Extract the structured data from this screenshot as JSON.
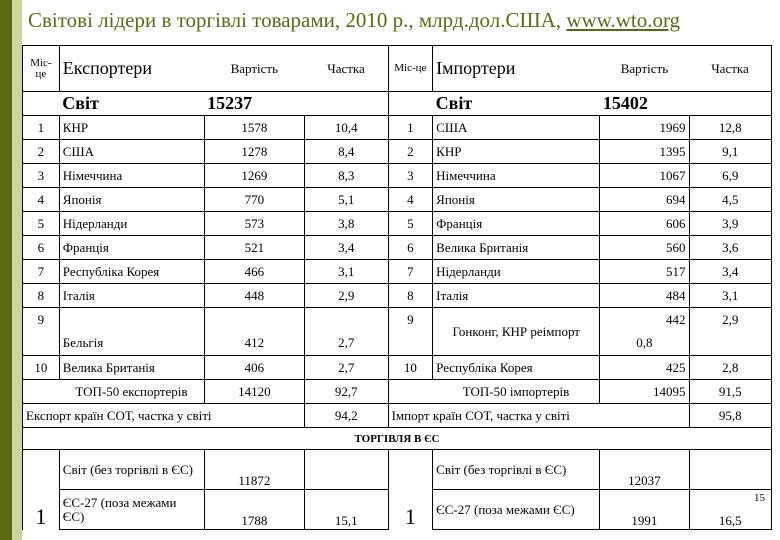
{
  "title": {
    "text": "Світові лідери в торгівлі товарами, 2010 р., млрд.дол.США, ",
    "link": "www.wto.org"
  },
  "header": {
    "place": "Міс-це",
    "exporters": "Експортери",
    "importers": "Імпортери",
    "value": "Вартість",
    "share": "Частка"
  },
  "world": {
    "label": "Світ",
    "export_value": "15237",
    "import_value": "15402"
  },
  "rows": [
    {
      "e_rank": "1",
      "e_country": "КНР",
      "e_value": "1578",
      "e_share": "10,4",
      "i_rank": "1",
      "i_country": "США",
      "i_value": "1969",
      "i_share": "12,8"
    },
    {
      "e_rank": "2",
      "e_country": "США",
      "e_value": "1278",
      "e_share": "8,4",
      "i_rank": "2",
      "i_country": "КНР",
      "i_value": "1395",
      "i_share": "9,1"
    },
    {
      "e_rank": "3",
      "e_country": "Німеччина",
      "e_value": "1269",
      "e_share": "8,3",
      "i_rank": "3",
      "i_country": "Німеччина",
      "i_value": "1067",
      "i_share": "6,9"
    },
    {
      "e_rank": "4",
      "e_country": "Японія",
      "e_value": "770",
      "e_share": "5,1",
      "i_rank": "4",
      "i_country": "Японія",
      "i_value": "694",
      "i_share": "4,5"
    },
    {
      "e_rank": "5",
      "e_country": "Нідерланди",
      "e_value": "573",
      "e_share": "3,8",
      "i_rank": "5",
      "i_country": "Франція",
      "i_value": "606",
      "i_share": "3,9"
    },
    {
      "e_rank": "6",
      "e_country": "Франція",
      "e_value": "521",
      "e_share": "3,4",
      "i_rank": "6",
      "i_country": "Велика Британія",
      "i_value": "560",
      "i_share": "3,6"
    },
    {
      "e_rank": "7",
      "e_country": "Республіка Корея",
      "e_value": "466",
      "e_share": "3,1",
      "i_rank": "7",
      "i_country": "Нідерланди",
      "i_value": "517",
      "i_share": "3,4"
    },
    {
      "e_rank": "8",
      "e_country": "Італія",
      "e_value": "448",
      "e_share": "2,9",
      "i_rank": "8",
      "i_country": "Італія",
      "i_value": "484",
      "i_share": "3,1"
    }
  ],
  "row9": {
    "e_rank": "9",
    "e_country": "Бельгія",
    "e_value": "412",
    "e_share": "2,7",
    "i_rank": "9",
    "i_country": "Гонконг, КНР реімпорт",
    "i_value_a": "442",
    "i_value_b": "0,8",
    "i_share": "2,9"
  },
  "row10": {
    "e_rank": "10",
    "e_country": "Велика Британія",
    "e_value": "406",
    "e_share": "2,7",
    "i_rank": "10",
    "i_country": "Республіка Корея",
    "i_value": "425",
    "i_share": "2,8"
  },
  "top50": {
    "e_label": "ТОП-50 експортерів",
    "e_value": "14120",
    "e_share": "92,7",
    "i_label": "ТОП-50 імпортерів",
    "i_value": "14095",
    "i_share": "91,5"
  },
  "sot": {
    "e_label": "Експорт країн СОТ, частка у світі",
    "e_share": "94,2",
    "i_label": "Імпорт країн СОТ, частка у світі",
    "i_share": "95,8"
  },
  "eu": {
    "section_title": "ТОРГІВЛЯ В ЄС",
    "e_num": "1",
    "e_world_label": "Світ (без торгівлі в ЄС)",
    "e_world_value": "11872",
    "e_eu_label": "ЄС-27 (поза межами ЄС)",
    "e_eu_value": "1788",
    "e_eu_share": "15,1",
    "i_num": "1",
    "i_world_label": "Світ (без торгівлі в ЄС)",
    "i_world_value": "12037",
    "i_eu_label": "ЄС-27 (поза межами ЄС)",
    "i_eu_value": "1991",
    "i_eu_share": "16,5",
    "slide_number": "15"
  }
}
